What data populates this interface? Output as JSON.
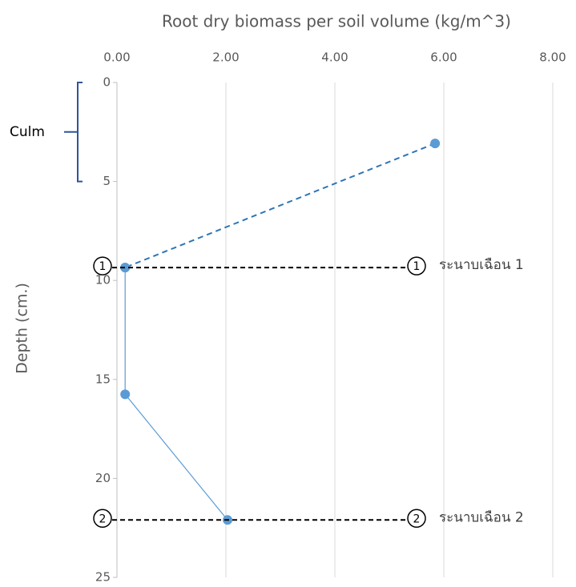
{
  "chart_data": {
    "type": "line",
    "title": "Root dry biomass per soil volume (kg/m^3)",
    "y_label": "Depth (cm.)",
    "xlim": [
      0,
      8
    ],
    "xticks": [
      {
        "value": 0,
        "label": "0.00"
      },
      {
        "value": 2,
        "label": "2.00"
      },
      {
        "value": 4,
        "label": "4.00"
      },
      {
        "value": 6,
        "label": "6.00"
      },
      {
        "value": 8,
        "label": "8.00"
      }
    ],
    "ylim": [
      0,
      25
    ],
    "yticks": [
      0,
      5,
      10,
      15,
      20,
      25
    ],
    "y_inverted": true,
    "x_axis_position": "top",
    "grid": true,
    "series": [
      {
        "color": "#2e75b6",
        "dashed": true,
        "x": [
          5.84,
          0.15
        ],
        "y": [
          3.08,
          9.35
        ]
      },
      {
        "color": "#5b9bd5",
        "dashed": false,
        "x": [
          0.15,
          0.15,
          2.03
        ],
        "y": [
          9.35,
          15.75,
          22.1
        ]
      }
    ],
    "shear_planes": [
      {
        "y": 9.35,
        "marker": "1",
        "label": "ระนาบเฉือน 1"
      },
      {
        "y": 22.1,
        "marker": "2",
        "label": "ระนาบเฉือน 2"
      }
    ],
    "bracket": {
      "label": "Culm",
      "from": 0,
      "to": 5,
      "color": "#2f5597"
    }
  }
}
